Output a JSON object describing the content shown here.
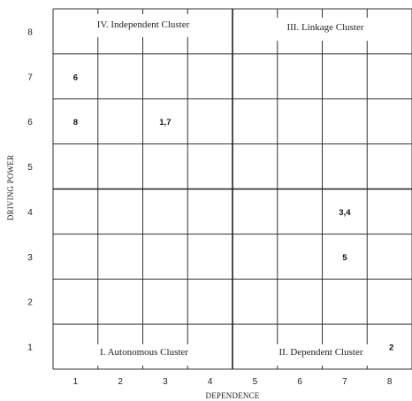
{
  "diagram": {
    "xlabel": "DEPENDENCE",
    "ylabel": "DRIVING POWER",
    "x_ticks": [
      "1",
      "2",
      "3",
      "4",
      "5",
      "6",
      "7",
      "8"
    ],
    "y_ticks": [
      "1",
      "2",
      "3",
      "4",
      "5",
      "6",
      "7",
      "8"
    ],
    "clusters": {
      "top_left": "IV. Independent Cluster",
      "top_right": "III. Linkage Cluster",
      "bottom_left": "I. Autonomous Cluster",
      "bottom_right": "II. Dependent Cluster"
    },
    "points": [
      {
        "label": "6",
        "dependence": 1,
        "driving_power": 7
      },
      {
        "label": "8",
        "dependence": 1,
        "driving_power": 6
      },
      {
        "label": "1,7",
        "dependence": 3,
        "driving_power": 6
      },
      {
        "label": "3,4",
        "dependence": 7,
        "driving_power": 4
      },
      {
        "label": "5",
        "dependence": 7,
        "driving_power": 3
      },
      {
        "label": "2",
        "dependence": 8,
        "driving_power": 1
      }
    ]
  }
}
